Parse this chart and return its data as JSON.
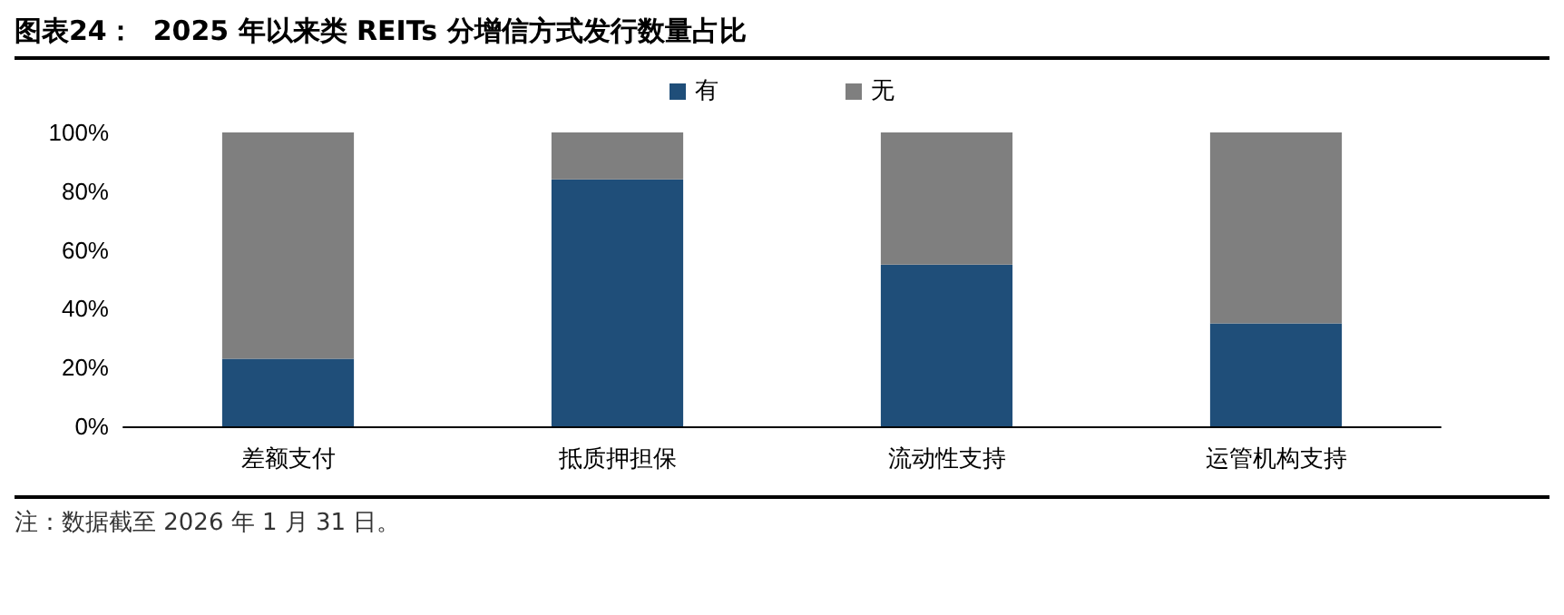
{
  "chart_data": {
    "type": "bar",
    "stacked": true,
    "title": "图表24：  2025 年以来类 REITs 分增信方式发行数量占比",
    "categories": [
      "差额支付",
      "抵质押担保",
      "流动性支持",
      "运管机构支持"
    ],
    "series": [
      {
        "name": "有",
        "color": "#1f4e79",
        "values": [
          23,
          84,
          55,
          35
        ]
      },
      {
        "name": "无",
        "color": "#7f7f7f",
        "values": [
          77,
          16,
          45,
          65
        ]
      }
    ],
    "ylim": [
      0,
      100
    ],
    "yticks": [
      {
        "value": 0,
        "label": "0%"
      },
      {
        "value": 20,
        "label": "20%"
      },
      {
        "value": 40,
        "label": "40%"
      },
      {
        "value": 60,
        "label": "60%"
      },
      {
        "value": 80,
        "label": "80%"
      },
      {
        "value": 100,
        "label": "100%"
      }
    ],
    "grid": false,
    "legend": "top",
    "annotations": [
      "注：数据截至 2026 年 1 月 31 日。"
    ]
  }
}
